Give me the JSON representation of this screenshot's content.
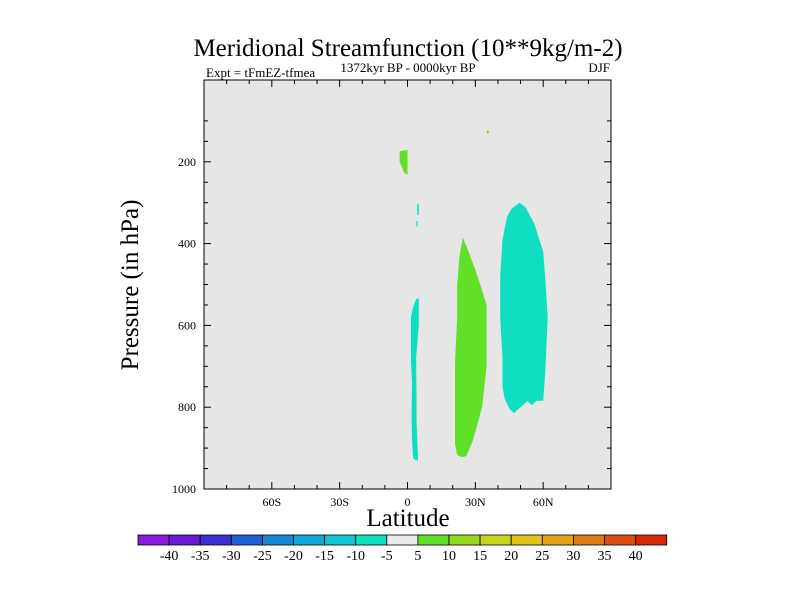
{
  "chart_data": {
    "type": "heatmap",
    "title": "Meridional Streamfunction (10**9kg/m-2)",
    "subtitle_left": "Expt = tFmEZ-tfmea",
    "subtitle_center": "1372kyr BP - 0000kyr BP",
    "subtitle_right": "DJF",
    "xlabel": "Latitude",
    "ylabel": "Pressure (in hPa)",
    "xlim": [
      -90,
      90
    ],
    "ylim": [
      1000,
      0
    ],
    "x_ticks": [
      {
        "value": -60,
        "label": "60S"
      },
      {
        "value": -30,
        "label": "30S"
      },
      {
        "value": 0,
        "label": "0"
      },
      {
        "value": 30,
        "label": "30N"
      },
      {
        "value": 60,
        "label": "60N"
      }
    ],
    "y_ticks": [
      {
        "value": 200,
        "label": "200"
      },
      {
        "value": 400,
        "label": "400"
      },
      {
        "value": 600,
        "label": "600"
      },
      {
        "value": 800,
        "label": "800"
      },
      {
        "value": 1000,
        "label": "1000"
      }
    ],
    "background_bin": "-5 to 5",
    "filled_regions": [
      {
        "bin": "5 to 10",
        "points": [
          [
            -3.5,
            174
          ],
          [
            0,
            171
          ],
          [
            0,
            232
          ],
          [
            -1.5,
            226
          ],
          [
            -3.5,
            200
          ]
        ]
      },
      {
        "bin": "5 to 10",
        "points": [
          [
            35.5,
            122
          ],
          [
            36,
            125
          ],
          [
            36,
            128
          ],
          [
            35.5,
            131
          ],
          [
            35,
            128
          ]
        ]
      },
      {
        "bin": "5 to 10",
        "points": [
          [
            24.5,
            385
          ],
          [
            27,
            420
          ],
          [
            31,
            480
          ],
          [
            35,
            550
          ],
          [
            35,
            700
          ],
          [
            33,
            800
          ],
          [
            29,
            880
          ],
          [
            26,
            920
          ],
          [
            24,
            922
          ],
          [
            22,
            917
          ],
          [
            21,
            890
          ],
          [
            21,
            780
          ],
          [
            21,
            690
          ],
          [
            22,
            580
          ],
          [
            22,
            500
          ],
          [
            23,
            430
          ]
        ]
      },
      {
        "bin": "-10 to -5",
        "points": [
          [
            4.3,
            303
          ],
          [
            5,
            303
          ],
          [
            5,
            330
          ],
          [
            4.3,
            330
          ]
        ]
      },
      {
        "bin": "-10 to -5",
        "points": [
          [
            4,
            345
          ],
          [
            4.5,
            345
          ],
          [
            4.5,
            358
          ],
          [
            4,
            358
          ]
        ]
      },
      {
        "bin": "-10 to -5",
        "points": [
          [
            4,
            535
          ],
          [
            5,
            535
          ],
          [
            5,
            600
          ],
          [
            3.8,
            680
          ],
          [
            4,
            760
          ],
          [
            4,
            830
          ],
          [
            4.7,
            930
          ],
          [
            3.5,
            929
          ],
          [
            2.5,
            925
          ],
          [
            2,
            880
          ],
          [
            1.8,
            820
          ],
          [
            2,
            740
          ],
          [
            1.5,
            680
          ],
          [
            1.5,
            580
          ],
          [
            2.5,
            555
          ]
        ]
      },
      {
        "bin": "-10 to -5",
        "points": [
          [
            49.5,
            300
          ],
          [
            52,
            310
          ],
          [
            56,
            350
          ],
          [
            60,
            420
          ],
          [
            61,
            490
          ],
          [
            62,
            580
          ],
          [
            61,
            710
          ],
          [
            60,
            784
          ],
          [
            57,
            784
          ],
          [
            55,
            795
          ],
          [
            53,
            785
          ],
          [
            50,
            800
          ],
          [
            47,
            815
          ],
          [
            45,
            803
          ],
          [
            43,
            780
          ],
          [
            42,
            750
          ],
          [
            42,
            680
          ],
          [
            41,
            580
          ],
          [
            41,
            480
          ],
          [
            42,
            390
          ],
          [
            44,
            335
          ],
          [
            46,
            315
          ]
        ]
      }
    ],
    "colorbar": {
      "labels": [
        "-40",
        "-35",
        "-30",
        "-25",
        "-20",
        "-15",
        "-10",
        "-5",
        "5",
        "10",
        "15",
        "20",
        "25",
        "30",
        "35",
        "40"
      ],
      "colors": [
        "#8a1ce0",
        "#6a1ad6",
        "#3c2fd0",
        "#1f60d4",
        "#1788d6",
        "#12a8d8",
        "#12c4d4",
        "#10dec0",
        "#ebebeb",
        "#62df27",
        "#95d91e",
        "#c6d41d",
        "#e2c31c",
        "#e0a31b",
        "#dd7a15",
        "#d95010",
        "#d42a08"
      ]
    },
    "bin_colors": {
      "-5 to 5": "#e6e6e6",
      "5 to 10": "#62df27",
      "-10 to -5": "#10dec0"
    }
  }
}
